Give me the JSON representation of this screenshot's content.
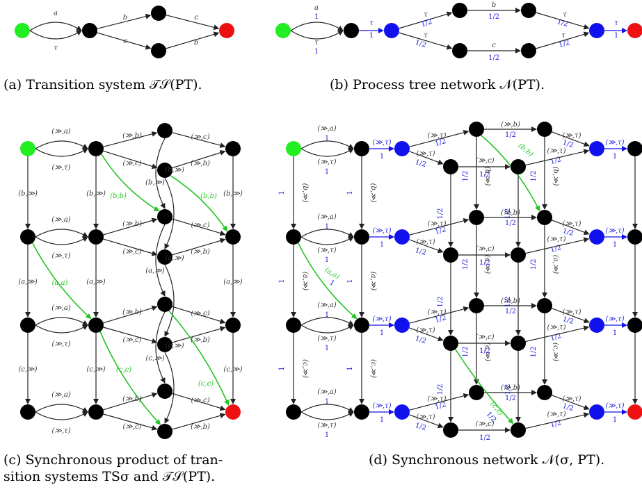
{
  "captions": {
    "a": "(a) Transition system 𝒯𝒮(PT).",
    "b": "(b) Process tree network 𝒩(PT).",
    "c_line1": "(c) Synchronous product of tran-",
    "c_line2": "sition systems TSσ and 𝒯𝒮(PT).",
    "d": "(d) Synchronous network 𝒩(σ, PT)."
  },
  "labels": {
    "a": "a",
    "b": "b",
    "c": "c",
    "tau": "τ",
    "one": "1",
    "half": "1/2",
    "mtau": "(≫,τ)",
    "ma": "(≫,a)",
    "mb": "(≫,b)",
    "mc": "(≫,c)",
    "bm": "(b,≫)",
    "am": "(a,≫)",
    "cm": "(c,≫)",
    "bb": "(b,b)",
    "aa": "(a,a)",
    "cc": "(c,c)"
  },
  "colors": {
    "start": "#22ee22",
    "end": "#ee1111",
    "state": "#000000",
    "silent": "#1111ee",
    "sync": "#22c422",
    "edge": "#222222"
  }
}
